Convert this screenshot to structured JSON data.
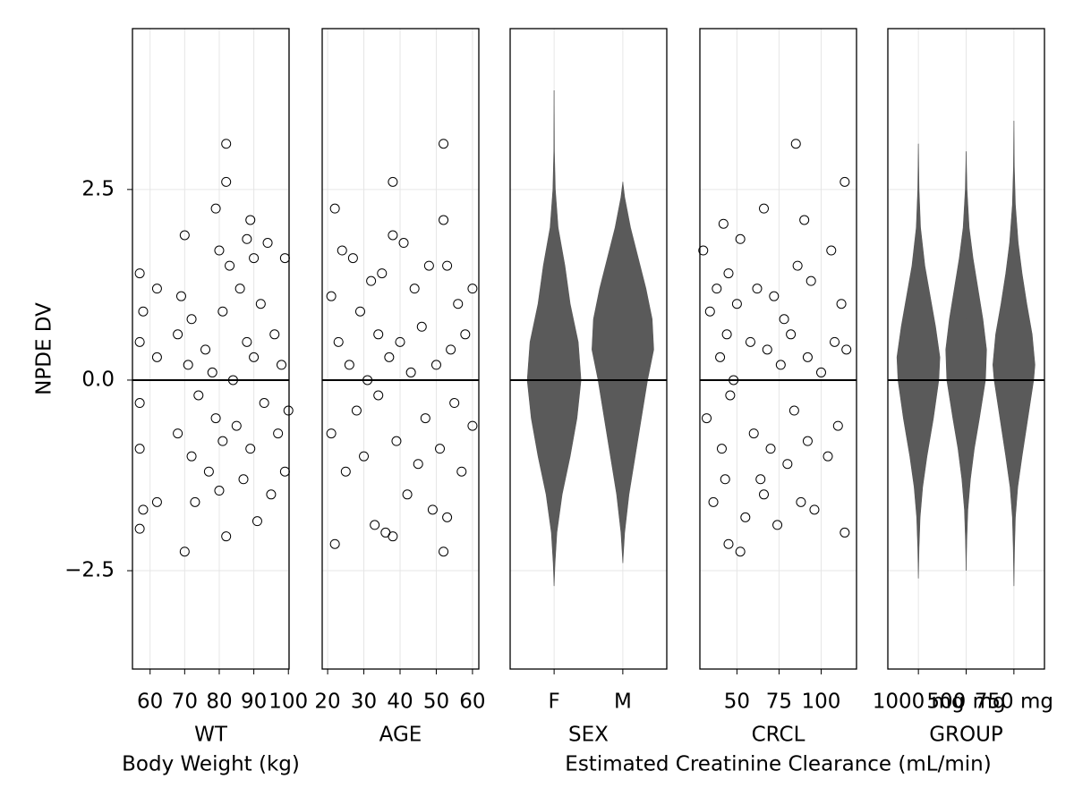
{
  "chart_data": {
    "type": "facet",
    "ylabel": "NPDE DV",
    "ylim": [
      -3.79,
      4.61
    ],
    "yticks": [
      {
        "value": -2.5,
        "label": "−2.5"
      },
      {
        "value": 0,
        "label": "0.0"
      },
      2.5
    ],
    "hline": 0,
    "grid": true,
    "panels": [
      {
        "type": "scatter",
        "xlabel": "WT",
        "xlabel2": "Body Weight (kg)",
        "xlim": [
          54.9,
          100.2
        ],
        "xticks": [
          60,
          70,
          80,
          90,
          100
        ],
        "x": [
          57,
          57,
          57,
          57,
          57,
          58,
          58,
          62,
          62,
          62,
          68,
          68,
          69,
          70,
          70,
          71,
          72,
          72,
          73,
          74,
          76,
          77,
          78,
          79,
          79,
          80,
          80,
          81,
          81,
          82,
          82,
          82,
          83,
          84,
          85,
          86,
          87,
          88,
          88,
          89,
          89,
          90,
          90,
          91,
          92,
          93,
          94,
          95,
          96,
          97,
          98,
          99,
          99,
          100
        ],
        "y": [
          1.4,
          0.5,
          -0.3,
          -0.9,
          -1.95,
          -1.7,
          0.9,
          1.2,
          0.3,
          -1.6,
          0.6,
          -0.7,
          1.1,
          1.9,
          -2.25,
          0.2,
          -1.0,
          0.8,
          -1.6,
          -0.2,
          0.4,
          -1.2,
          0.1,
          2.25,
          -0.5,
          1.7,
          -1.45,
          0.9,
          -0.8,
          3.1,
          2.6,
          -2.05,
          1.5,
          0.0,
          -0.6,
          1.2,
          -1.3,
          0.5,
          1.85,
          2.1,
          -0.9,
          1.6,
          0.3,
          -1.85,
          1.0,
          -0.3,
          1.8,
          -1.5,
          0.6,
          -0.7,
          0.2,
          1.6,
          -1.2,
          -0.4
        ]
      },
      {
        "type": "scatter",
        "xlabel": "AGE",
        "xlim": [
          18.5,
          61.75
        ],
        "xticks": [
          20,
          30,
          40,
          50,
          60
        ],
        "x": [
          21,
          21,
          22,
          22,
          23,
          24,
          25,
          26,
          27,
          28,
          29,
          30,
          31,
          32,
          33,
          34,
          34,
          35,
          36,
          37,
          38,
          38,
          38,
          39,
          40,
          41,
          42,
          43,
          44,
          45,
          46,
          47,
          48,
          49,
          50,
          51,
          52,
          52,
          52,
          53,
          53,
          54,
          55,
          56,
          57,
          58,
          60,
          60
        ],
        "y": [
          1.1,
          -0.7,
          2.25,
          -2.15,
          0.5,
          1.7,
          -1.2,
          0.2,
          1.6,
          -0.4,
          0.9,
          -1.0,
          0.0,
          1.3,
          -1.9,
          0.6,
          -0.2,
          1.4,
          -2.0,
          0.3,
          2.6,
          -2.05,
          1.9,
          -0.8,
          0.5,
          1.8,
          -1.5,
          0.1,
          1.2,
          -1.1,
          0.7,
          -0.5,
          1.5,
          -1.7,
          0.2,
          -0.9,
          3.1,
          -2.25,
          2.1,
          1.5,
          -1.8,
          0.4,
          -0.3,
          1.0,
          -1.2,
          0.6,
          1.2,
          -0.6
        ]
      },
      {
        "type": "violin",
        "xlabel": "SEX",
        "color": "#5a5a5a",
        "categories": [
          "F",
          "M"
        ],
        "violins": [
          {
            "y": [
              -2.7,
              -2.4,
              -2.0,
              -1.5,
              -1.0,
              -0.5,
              0,
              0.5,
              1.0,
              1.5,
              2.0,
              2.5,
              3.0,
              3.8
            ],
            "density": [
              0,
              0.03,
              0.09,
              0.26,
              0.52,
              0.74,
              0.87,
              0.78,
              0.52,
              0.35,
              0.13,
              0.04,
              0.01,
              0
            ]
          },
          {
            "y": [
              -2.4,
              -2.0,
              -1.5,
              -1.0,
              -0.5,
              0,
              0.4,
              0.8,
              1.2,
              1.6,
              2.0,
              2.4,
              2.6
            ],
            "density": [
              0,
              0.06,
              0.2,
              0.4,
              0.6,
              0.8,
              1.0,
              0.95,
              0.75,
              0.5,
              0.25,
              0.06,
              0
            ]
          }
        ]
      },
      {
        "type": "scatter",
        "xlabel": "CRCL",
        "xlabel2": "Estimated Creatinine Clearance (mL/min)",
        "xlim": [
          28,
          121
        ],
        "xticks": [
          50,
          75,
          100
        ],
        "x": [
          30,
          32,
          34,
          36,
          38,
          40,
          41,
          42,
          43,
          44,
          45,
          45,
          46,
          48,
          50,
          52,
          52,
          55,
          58,
          60,
          62,
          64,
          66,
          66,
          68,
          70,
          72,
          74,
          76,
          78,
          80,
          82,
          84,
          85,
          86,
          88,
          90,
          92,
          92,
          94,
          96,
          100,
          104,
          106,
          108,
          110,
          112,
          114,
          114,
          115
        ],
        "y": [
          1.7,
          -0.5,
          0.9,
          -1.6,
          1.2,
          0.3,
          -0.9,
          2.05,
          -1.3,
          0.6,
          -2.15,
          1.4,
          -0.2,
          0.0,
          1.0,
          -2.25,
          1.85,
          -1.8,
          0.5,
          -0.7,
          1.2,
          -1.3,
          2.25,
          -1.5,
          0.4,
          -0.9,
          1.1,
          -1.9,
          0.2,
          0.8,
          -1.1,
          0.6,
          -0.4,
          3.1,
          1.5,
          -1.6,
          2.1,
          0.3,
          -0.8,
          1.3,
          -1.7,
          0.1,
          -1.0,
          1.7,
          0.5,
          -0.6,
          1.0,
          2.6,
          -2.0,
          0.4
        ]
      },
      {
        "type": "violin",
        "xlabel": "GROUP",
        "color": "#5a5a5a",
        "categories": [
          "1000 mg",
          "500 mg",
          "750 mg"
        ],
        "violins": [
          {
            "y": [
              -2.6,
              -2.2,
              -1.8,
              -1.4,
              -1.0,
              -0.5,
              0,
              0.3,
              0.7,
              1.1,
              1.5,
              2.0,
              2.5,
              3.1
            ],
            "density": [
              0,
              0.03,
              0.08,
              0.2,
              0.4,
              0.7,
              0.95,
              1.0,
              0.8,
              0.55,
              0.3,
              0.1,
              0.03,
              0
            ]
          },
          {
            "y": [
              -2.5,
              -2.1,
              -1.7,
              -1.3,
              -0.9,
              -0.5,
              0,
              0.4,
              0.8,
              1.2,
              1.6,
              2.0,
              2.5,
              3.0
            ],
            "density": [
              0,
              0.03,
              0.08,
              0.2,
              0.38,
              0.62,
              0.9,
              0.95,
              0.78,
              0.55,
              0.32,
              0.14,
              0.04,
              0
            ]
          },
          {
            "y": [
              -2.7,
              -2.2,
              -1.8,
              -1.4,
              -1.0,
              -0.5,
              0,
              0.2,
              0.6,
              1.0,
              1.4,
              1.8,
              2.3,
              2.8,
              3.4
            ],
            "density": [
              0,
              0.03,
              0.07,
              0.18,
              0.38,
              0.65,
              0.92,
              0.98,
              0.85,
              0.6,
              0.38,
              0.2,
              0.07,
              0.02,
              0
            ]
          }
        ]
      }
    ]
  }
}
